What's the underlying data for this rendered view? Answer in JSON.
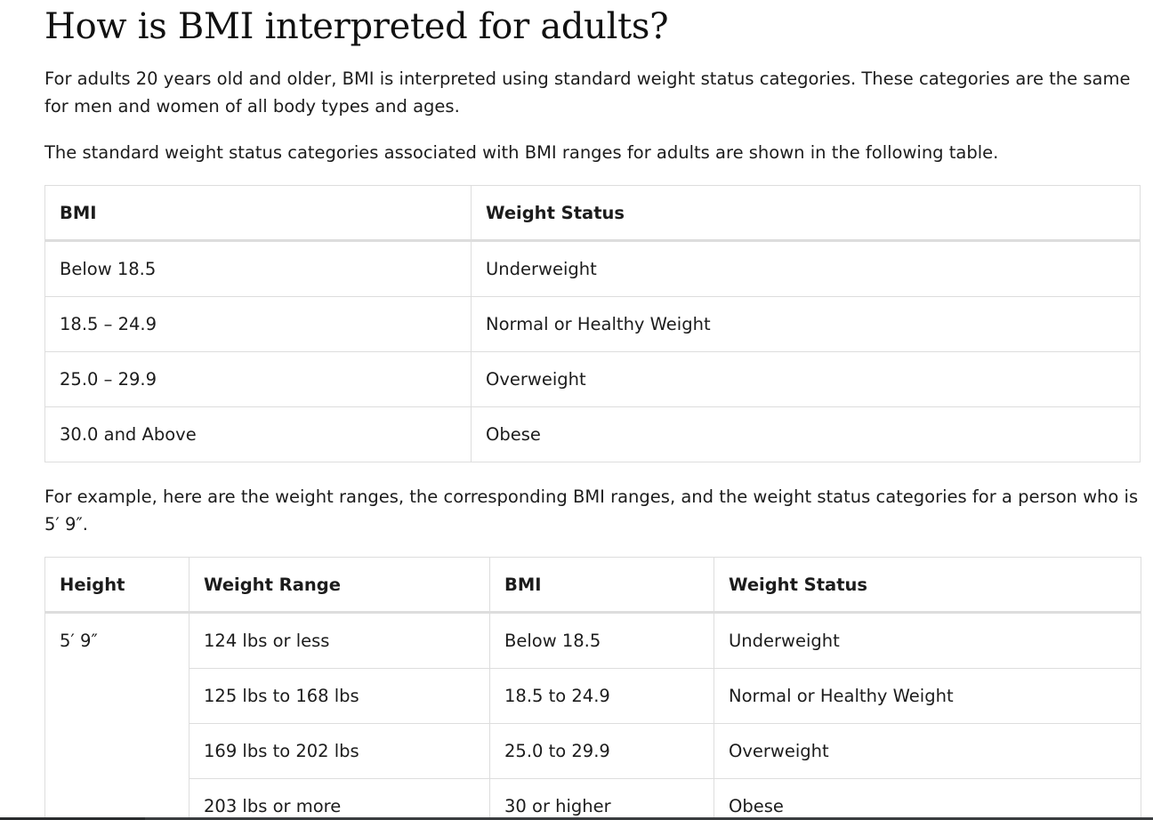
{
  "heading": "How is BMI interpreted for adults?",
  "intro": "For adults 20 years old and older, BMI is interpreted using standard weight status categories. These categories are the same for men and women of all body types and ages.",
  "table_intro": "The standard weight status categories associated with BMI ranges for adults are shown in the following table.",
  "bmi_table": {
    "headers": [
      "BMI",
      "Weight Status"
    ],
    "rows": [
      [
        "Below 18.5",
        "Underweight"
      ],
      [
        "18.5 – 24.9",
        "Normal or Healthy Weight"
      ],
      [
        "25.0 – 29.9",
        "Overweight"
      ],
      [
        "30.0 and Above",
        "Obese"
      ]
    ]
  },
  "example_intro": "For example, here are the weight ranges, the corresponding BMI ranges, and the weight status categories for a person who is 5′ 9″.",
  "example_table": {
    "headers": [
      "Height",
      "Weight Range",
      "BMI",
      "Weight Status"
    ],
    "height": "5′ 9″",
    "rows": [
      [
        "124 lbs or less",
        "Below 18.5",
        "Underweight"
      ],
      [
        "125 lbs to 168 lbs",
        "18.5 to 24.9",
        "Normal or Healthy Weight"
      ],
      [
        "169 lbs to 202 lbs",
        "25.0 to 29.9",
        "Overweight"
      ],
      [
        "203 lbs or more",
        "30 or higher",
        "Obese"
      ]
    ]
  }
}
